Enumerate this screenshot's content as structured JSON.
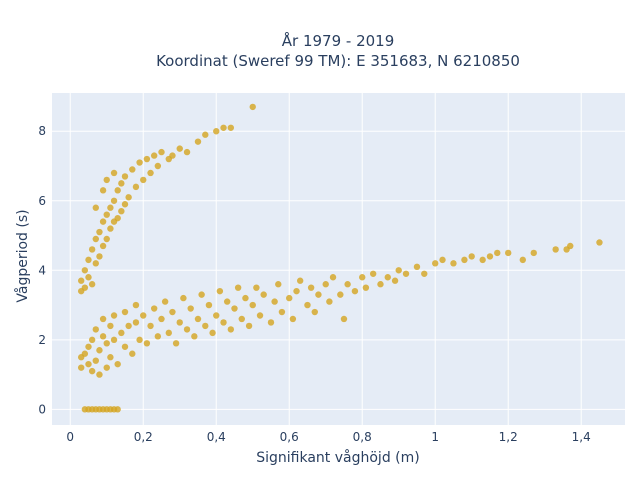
{
  "chart_data": {
    "type": "scatter",
    "title_lines": [
      "År 1979 - 2019",
      "Koordinat (Sweref 99 TM): E 351683, N 6210850"
    ],
    "xlabel": "Signifikant våghöjd (m)",
    "ylabel": "Vågperiod (s)",
    "xlim": [
      -0.05,
      1.52
    ],
    "ylim": [
      -0.45,
      9.1
    ],
    "x_ticks": [
      0,
      0.2,
      0.4,
      0.6,
      0.8,
      1.0,
      1.2,
      1.4
    ],
    "x_tick_labels": [
      "0",
      "0,2",
      "0,4",
      "0,6",
      "0,8",
      "1",
      "1,2",
      "1,4"
    ],
    "y_ticks": [
      0,
      2,
      4,
      6,
      8
    ],
    "y_tick_labels": [
      "0",
      "2",
      "4",
      "6",
      "8"
    ],
    "grid": true,
    "legend": "none",
    "colors": {
      "marker": "#d4a520",
      "plot_bg": "#e5ecf6",
      "grid": "#ffffff",
      "text": "#2a3f5f"
    },
    "series": [
      {
        "points": [
          [
            0.04,
            0
          ],
          [
            0.05,
            0
          ],
          [
            0.06,
            0
          ],
          [
            0.07,
            0
          ],
          [
            0.08,
            0
          ],
          [
            0.09,
            0
          ],
          [
            0.1,
            0
          ],
          [
            0.11,
            0
          ],
          [
            0.12,
            0
          ],
          [
            0.13,
            0
          ],
          [
            0.03,
            1.2
          ],
          [
            0.03,
            1.5
          ],
          [
            0.04,
            1.6
          ],
          [
            0.05,
            1.3
          ],
          [
            0.05,
            1.8
          ],
          [
            0.06,
            2.0
          ],
          [
            0.06,
            1.1
          ],
          [
            0.07,
            1.4
          ],
          [
            0.07,
            2.3
          ],
          [
            0.08,
            1.0
          ],
          [
            0.08,
            1.7
          ],
          [
            0.09,
            2.1
          ],
          [
            0.09,
            2.6
          ],
          [
            0.1,
            1.2
          ],
          [
            0.1,
            1.9
          ],
          [
            0.11,
            2.4
          ],
          [
            0.11,
            1.5
          ],
          [
            0.12,
            2.0
          ],
          [
            0.12,
            2.7
          ],
          [
            0.13,
            1.3
          ],
          [
            0.14,
            2.2
          ],
          [
            0.15,
            1.8
          ],
          [
            0.15,
            2.8
          ],
          [
            0.16,
            2.4
          ],
          [
            0.17,
            1.6
          ],
          [
            0.18,
            2.5
          ],
          [
            0.18,
            3.0
          ],
          [
            0.19,
            2.0
          ],
          [
            0.2,
            2.7
          ],
          [
            0.21,
            1.9
          ],
          [
            0.22,
            2.4
          ],
          [
            0.23,
            2.9
          ],
          [
            0.24,
            2.1
          ],
          [
            0.25,
            2.6
          ],
          [
            0.26,
            3.1
          ],
          [
            0.27,
            2.2
          ],
          [
            0.28,
            2.8
          ],
          [
            0.29,
            1.9
          ],
          [
            0.3,
            2.5
          ],
          [
            0.31,
            3.2
          ],
          [
            0.32,
            2.3
          ],
          [
            0.33,
            2.9
          ],
          [
            0.34,
            2.1
          ],
          [
            0.35,
            2.6
          ],
          [
            0.36,
            3.3
          ],
          [
            0.37,
            2.4
          ],
          [
            0.38,
            3.0
          ],
          [
            0.39,
            2.2
          ],
          [
            0.4,
            2.7
          ],
          [
            0.41,
            3.4
          ],
          [
            0.42,
            2.5
          ],
          [
            0.43,
            3.1
          ],
          [
            0.44,
            2.3
          ],
          [
            0.45,
            2.9
          ],
          [
            0.46,
            3.5
          ],
          [
            0.47,
            2.6
          ],
          [
            0.48,
            3.2
          ],
          [
            0.49,
            2.4
          ],
          [
            0.5,
            3.0
          ],
          [
            0.51,
            3.5
          ],
          [
            0.52,
            2.7
          ],
          [
            0.53,
            3.3
          ],
          [
            0.55,
            2.5
          ],
          [
            0.56,
            3.1
          ],
          [
            0.57,
            3.6
          ],
          [
            0.58,
            2.8
          ],
          [
            0.6,
            3.2
          ],
          [
            0.61,
            2.6
          ],
          [
            0.62,
            3.4
          ],
          [
            0.63,
            3.7
          ],
          [
            0.65,
            3.0
          ],
          [
            0.66,
            3.5
          ],
          [
            0.67,
            2.8
          ],
          [
            0.68,
            3.3
          ],
          [
            0.7,
            3.6
          ],
          [
            0.71,
            3.1
          ],
          [
            0.72,
            3.8
          ],
          [
            0.74,
            3.3
          ],
          [
            0.75,
            2.6
          ],
          [
            0.76,
            3.6
          ],
          [
            0.78,
            3.4
          ],
          [
            0.8,
            3.8
          ],
          [
            0.81,
            3.5
          ],
          [
            0.83,
            3.9
          ],
          [
            0.85,
            3.6
          ],
          [
            0.87,
            3.8
          ],
          [
            0.89,
            3.7
          ],
          [
            0.9,
            4.0
          ],
          [
            0.92,
            3.9
          ],
          [
            0.95,
            4.1
          ],
          [
            0.97,
            3.9
          ],
          [
            1.0,
            4.2
          ],
          [
            1.02,
            4.3
          ],
          [
            1.05,
            4.2
          ],
          [
            1.08,
            4.3
          ],
          [
            1.1,
            4.4
          ],
          [
            1.13,
            4.3
          ],
          [
            1.15,
            4.4
          ],
          [
            1.17,
            4.5
          ],
          [
            1.2,
            4.5
          ],
          [
            1.24,
            4.3
          ],
          [
            1.27,
            4.5
          ],
          [
            1.33,
            4.6
          ],
          [
            1.36,
            4.6
          ],
          [
            1.37,
            4.7
          ],
          [
            1.45,
            4.8
          ],
          [
            0.03,
            3.4
          ],
          [
            0.03,
            3.7
          ],
          [
            0.04,
            3.5
          ],
          [
            0.04,
            4.0
          ],
          [
            0.05,
            3.8
          ],
          [
            0.05,
            4.3
          ],
          [
            0.06,
            3.6
          ],
          [
            0.06,
            4.6
          ],
          [
            0.07,
            4.2
          ],
          [
            0.07,
            4.9
          ],
          [
            0.08,
            4.4
          ],
          [
            0.08,
            5.1
          ],
          [
            0.09,
            4.7
          ],
          [
            0.09,
            5.4
          ],
          [
            0.1,
            4.9
          ],
          [
            0.1,
            5.6
          ],
          [
            0.11,
            5.2
          ],
          [
            0.11,
            5.8
          ],
          [
            0.12,
            5.4
          ],
          [
            0.12,
            6.0
          ],
          [
            0.13,
            5.5
          ],
          [
            0.13,
            6.3
          ],
          [
            0.14,
            5.7
          ],
          [
            0.14,
            6.5
          ],
          [
            0.15,
            5.9
          ],
          [
            0.15,
            6.7
          ],
          [
            0.16,
            6.1
          ],
          [
            0.17,
            6.9
          ],
          [
            0.18,
            6.4
          ],
          [
            0.19,
            7.1
          ],
          [
            0.2,
            6.6
          ],
          [
            0.21,
            7.2
          ],
          [
            0.22,
            6.8
          ],
          [
            0.23,
            7.3
          ],
          [
            0.24,
            7.0
          ],
          [
            0.25,
            7.4
          ],
          [
            0.27,
            7.2
          ],
          [
            0.28,
            7.3
          ],
          [
            0.3,
            7.5
          ],
          [
            0.32,
            7.4
          ],
          [
            0.35,
            7.7
          ],
          [
            0.37,
            7.9
          ],
          [
            0.4,
            8.0
          ],
          [
            0.42,
            8.1
          ],
          [
            0.44,
            8.1
          ],
          [
            0.5,
            8.7
          ],
          [
            0.1,
            6.6
          ],
          [
            0.12,
            6.8
          ],
          [
            0.09,
            6.3
          ],
          [
            0.07,
            5.8
          ]
        ]
      }
    ]
  }
}
